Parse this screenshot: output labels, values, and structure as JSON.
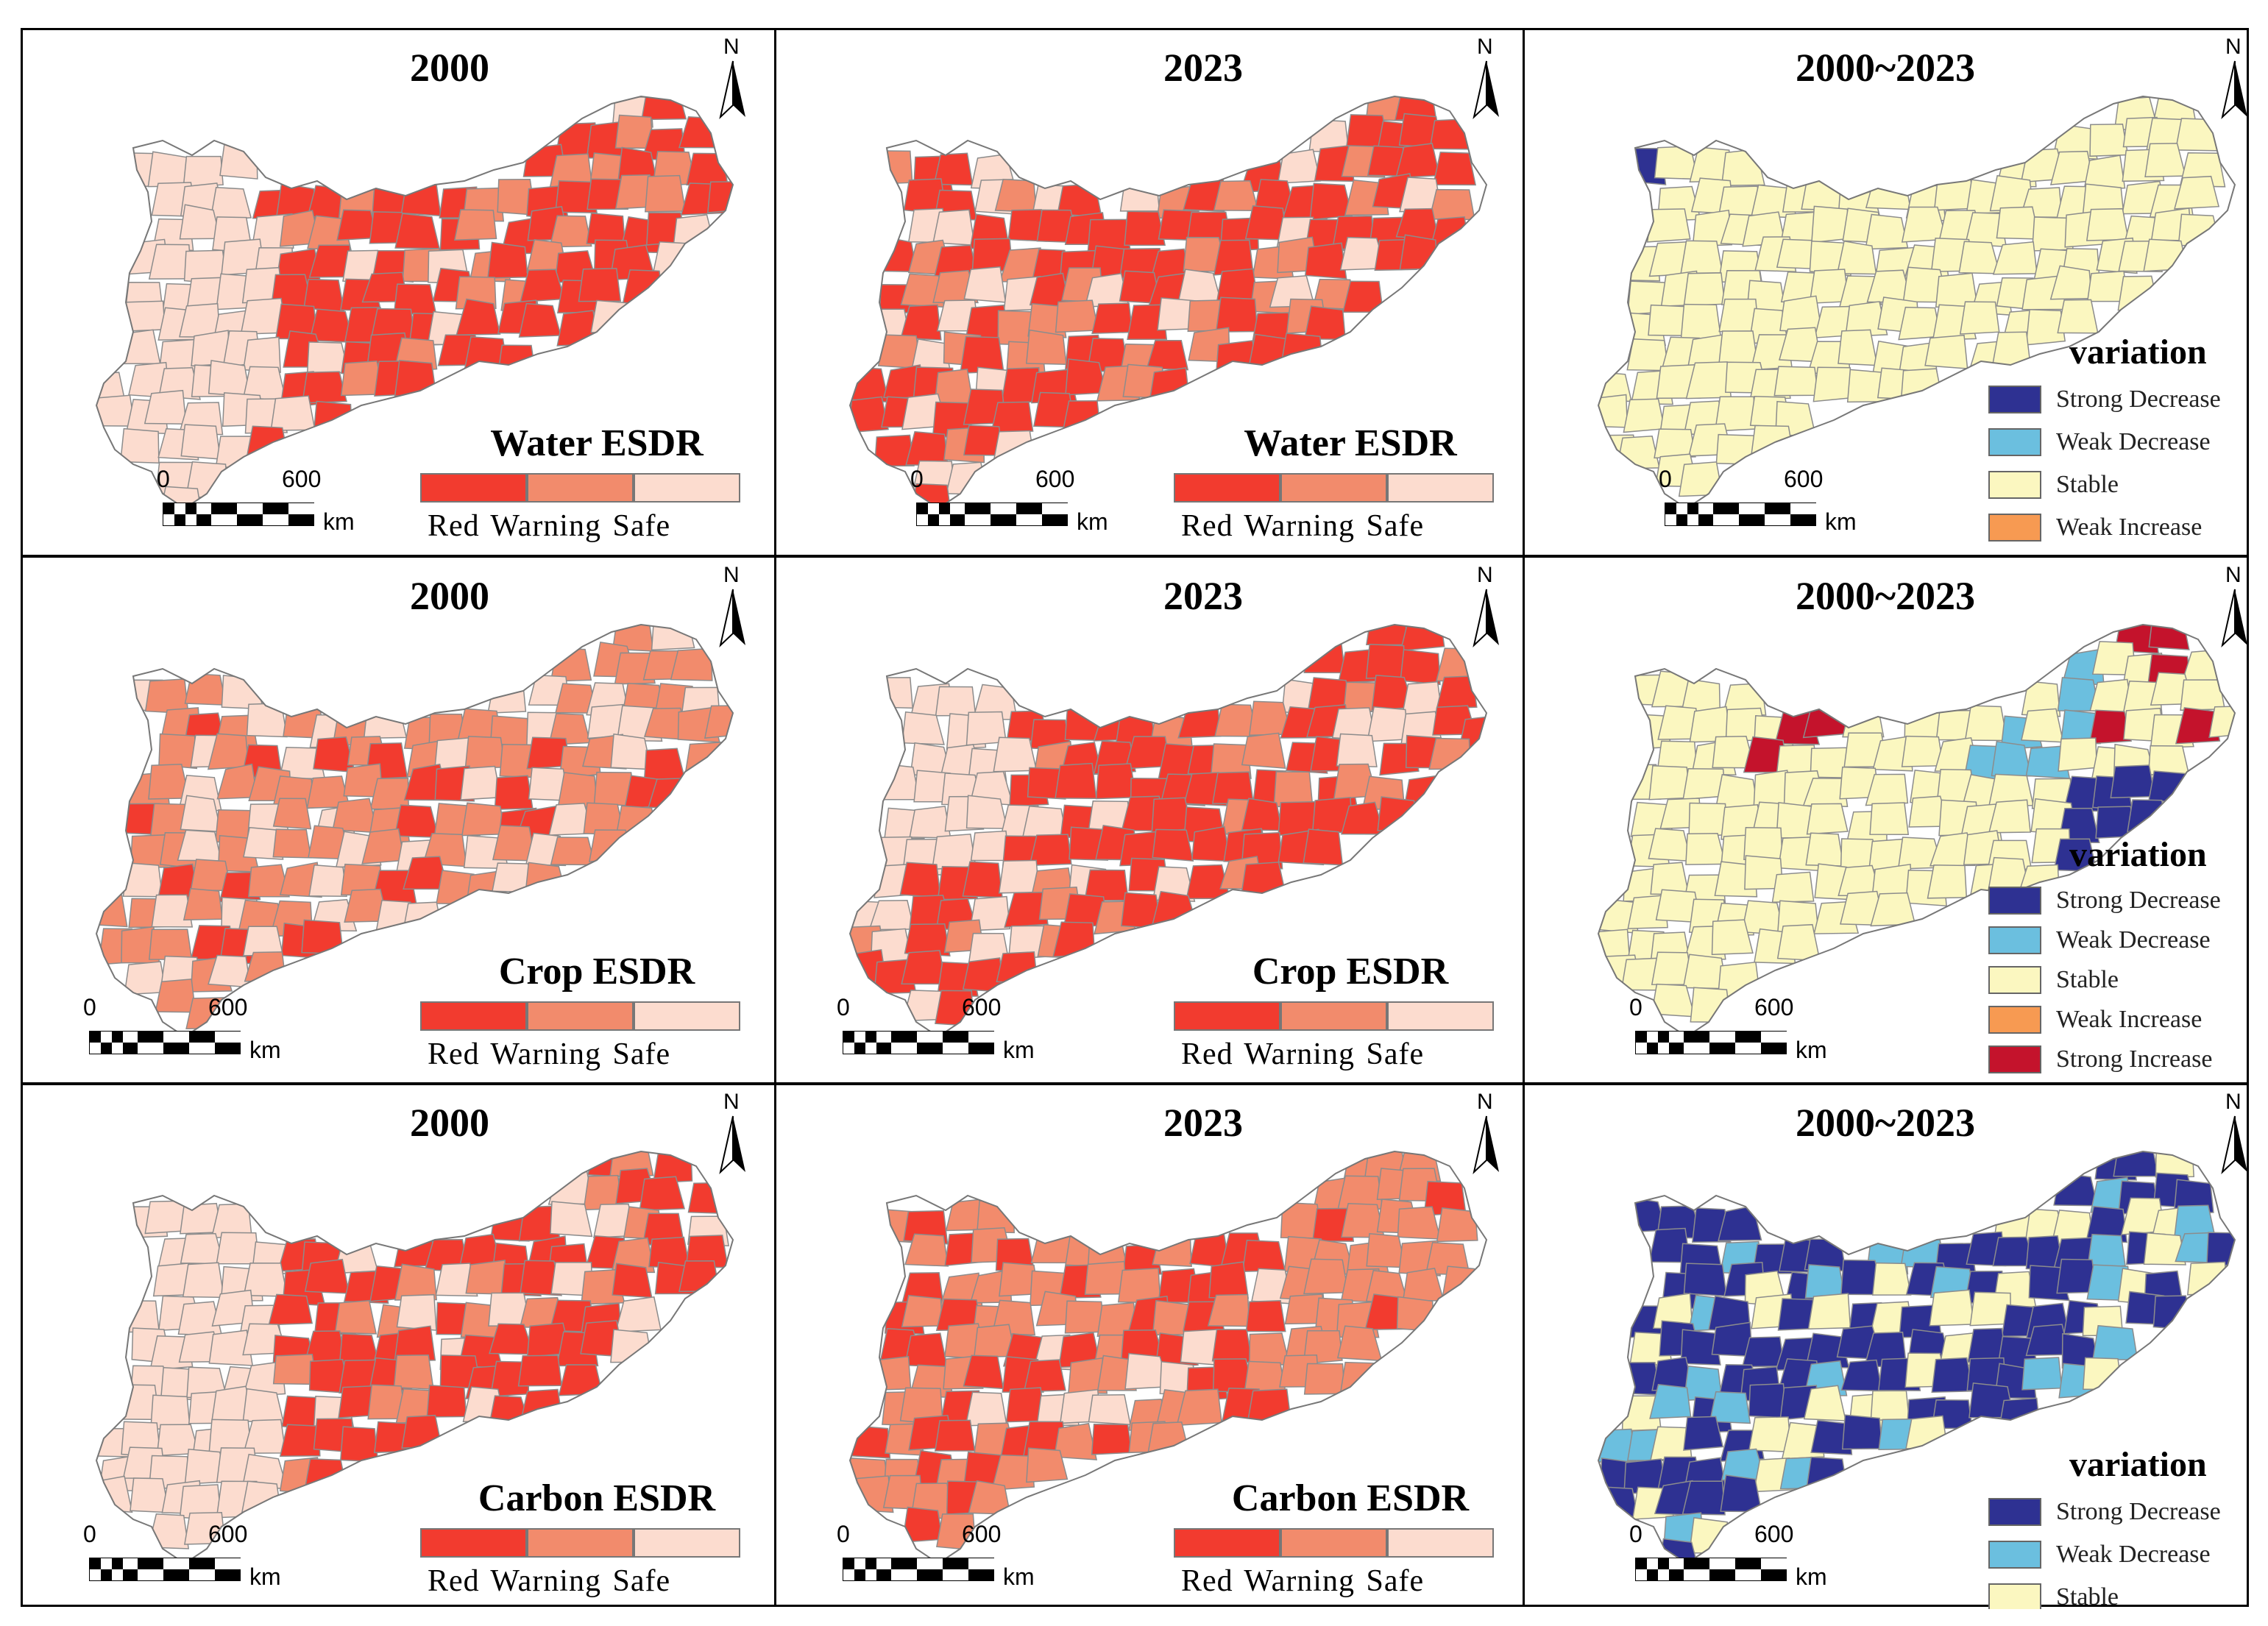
{
  "colors": {
    "red": "#f23b2f",
    "warning": "#f28b6c",
    "safe": "#fcdccf",
    "strong_decrease": "#2e3192",
    "weak_decrease": "#6bbfdf",
    "stable": "#fbf7c0",
    "weak_increase": "#f79a52",
    "strong_increase": "#c4132c"
  },
  "north_label": "N",
  "scale": {
    "zero": "0",
    "max": "600",
    "unit": "km"
  },
  "esdr_legend_labels": "Red  Warning  Safe",
  "variation_title": "variation",
  "rows": [
    {
      "name": "Water",
      "panels": [
        {
          "title": "2000",
          "type": "esdr",
          "legend_title": "Water ESDR",
          "scheme": [
            0.62,
            0.25,
            0.13
          ]
        },
        {
          "title": "2023",
          "type": "esdr",
          "legend_title": "Water ESDR",
          "scheme": [
            0.6,
            0.25,
            0.15
          ]
        },
        {
          "title": "2000~2023",
          "type": "variation",
          "legend_items": [
            {
              "label": "Strong Decrease",
              "color": "#2e3192"
            },
            {
              "label": "Weak Decrease",
              "color": "#6bbfdf"
            },
            {
              "label": "Stable",
              "color": "#fbf7c0"
            },
            {
              "label": "Weak Increase",
              "color": "#f79a52"
            }
          ]
        }
      ]
    },
    {
      "name": "Crop",
      "panels": [
        {
          "title": "2000",
          "type": "esdr",
          "legend_title": "Crop ESDR",
          "scheme": [
            0.15,
            0.55,
            0.3
          ]
        },
        {
          "title": "2023",
          "type": "esdr",
          "legend_title": "Crop ESDR",
          "scheme": [
            0.62,
            0.2,
            0.18
          ]
        },
        {
          "title": "2000~2023",
          "type": "variation",
          "legend_items": [
            {
              "label": "Strong Decrease",
              "color": "#2e3192"
            },
            {
              "label": "Weak Decrease",
              "color": "#6bbfdf"
            },
            {
              "label": "Stable",
              "color": "#fbf7c0"
            },
            {
              "label": "Weak Increase",
              "color": "#f79a52"
            },
            {
              "label": "Strong Increase",
              "color": "#c4132c"
            }
          ]
        }
      ]
    },
    {
      "name": "Carbon",
      "panels": [
        {
          "title": "2000",
          "type": "esdr",
          "legend_title": "Carbon ESDR",
          "scheme": [
            0.6,
            0.2,
            0.2
          ]
        },
        {
          "title": "2023",
          "type": "esdr",
          "legend_title": "Carbon ESDR",
          "scheme": [
            0.35,
            0.55,
            0.1
          ]
        },
        {
          "title": "2000~2023",
          "type": "variation",
          "legend_items": [
            {
              "label": "Strong Decrease",
              "color": "#2e3192"
            },
            {
              "label": "Weak Decrease",
              "color": "#6bbfdf"
            },
            {
              "label": "Stable",
              "color": "#fbf7c0"
            }
          ]
        }
      ]
    }
  ]
}
